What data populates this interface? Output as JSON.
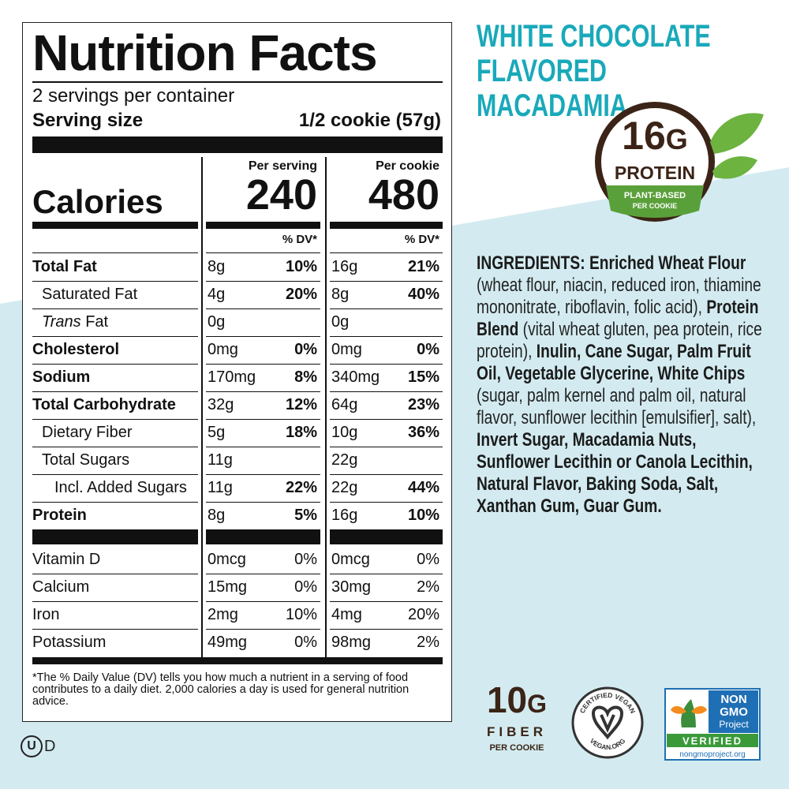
{
  "nutrition_facts": {
    "title": "Nutrition Facts",
    "servings": "2 servings per container",
    "serving_size_label": "Serving size",
    "serving_size": "1/2 cookie (57g)",
    "calories_label": "Calories",
    "columns": [
      {
        "heading": "Per serving",
        "calories": "240",
        "dv_heading": "% DV*"
      },
      {
        "heading": "Per cookie",
        "calories": "480",
        "dv_heading": "% DV*"
      }
    ],
    "nutrients": [
      [
        "Total Fat",
        "8g",
        "10%",
        "16g",
        "21%"
      ],
      [
        "Saturated Fat",
        "4g",
        "20%",
        "8g",
        "40%"
      ],
      [
        [
          "Trans",
          "Fat"
        ],
        "0g",
        null,
        "0g",
        null
      ],
      [
        "Cholesterol",
        "0mg",
        "0%",
        "0mg",
        "0%"
      ],
      [
        "Sodium",
        "170mg",
        "8%",
        "340mg",
        "15%"
      ],
      [
        "Total Carbohydrate",
        "32g",
        "12%",
        "64g",
        "23%"
      ],
      [
        "Dietary Fiber",
        "5g",
        "18%",
        "10g",
        "36%"
      ],
      [
        "Total Sugars",
        "11g",
        null,
        "22g",
        null
      ],
      [
        "Incl. Added Sugars",
        "11g",
        "22%",
        "22g",
        "44%"
      ],
      [
        "Protein",
        "8g",
        "5%",
        "16g",
        "10%"
      ]
    ],
    "vitamins": [
      [
        "Vitamin D",
        "0mcg",
        "0%",
        "0mcg",
        "0%"
      ],
      [
        "Calcium",
        "15mg",
        "0%",
        "30mg",
        "2%"
      ],
      [
        "Iron",
        "2mg",
        "10%",
        "4mg",
        "20%"
      ],
      [
        "Potassium",
        "49mg",
        "0%",
        "98mg",
        "2%"
      ]
    ],
    "footnote": "*The % Daily Value (DV) tells you how much a nutrient in a serving of food contributes to a daily diet. 2,000 calories a day is used for general nutrition advice."
  },
  "kosher": {
    "symbol": "U",
    "suffix": "D"
  },
  "product": {
    "title_lines": [
      "WHITE CHOCOLATE",
      "FLAVORED MACADAMIA"
    ]
  },
  "protein_badge": {
    "amount": "16",
    "unit": "G",
    "label": "PROTEIN",
    "line1": "PLANT-BASED",
    "line2": "PER COOKIE"
  },
  "ingredients": [
    {
      "text": "INGREDIENTS: Enriched Wheat Flour",
      "bold": true
    },
    {
      "text": " (wheat flour, niacin, reduced iron, thiamine mononitrate, riboflavin, folic acid), ",
      "bold": false
    },
    {
      "text": "Protein Blend",
      "bold": true
    },
    {
      "text": " (vital wheat gluten, pea protein, rice protein), ",
      "bold": false
    },
    {
      "text": "Inulin, Cane Sugar, Palm Fruit Oil, Vegetable Glycerine, White Chips",
      "bold": true
    },
    {
      "text": " (sugar, palm kernel and palm oil, natural flavor, sunflower lecithin [emulsifier], salt), ",
      "bold": false
    },
    {
      "text": "Invert Sugar, Macadamia Nuts, Sunflower Lecithin or Canola Lecithin, Natural Flavor, Baking Soda, Salt, Xanthan Gum, Guar Gum.",
      "bold": true
    }
  ],
  "fiber_badge": {
    "amount": "10",
    "unit": "G",
    "label": "FIBER",
    "sub": "PER COOKIE"
  },
  "vegan_badge": {
    "top": "CERTIFIED VEGAN",
    "bottom": "VEGAN.ORG"
  },
  "non_gmo_badge": {
    "line1": "NON",
    "line2": "GMO",
    "line3": "Project",
    "verified": "VERIFIED",
    "url": "nongmoproject.org"
  }
}
